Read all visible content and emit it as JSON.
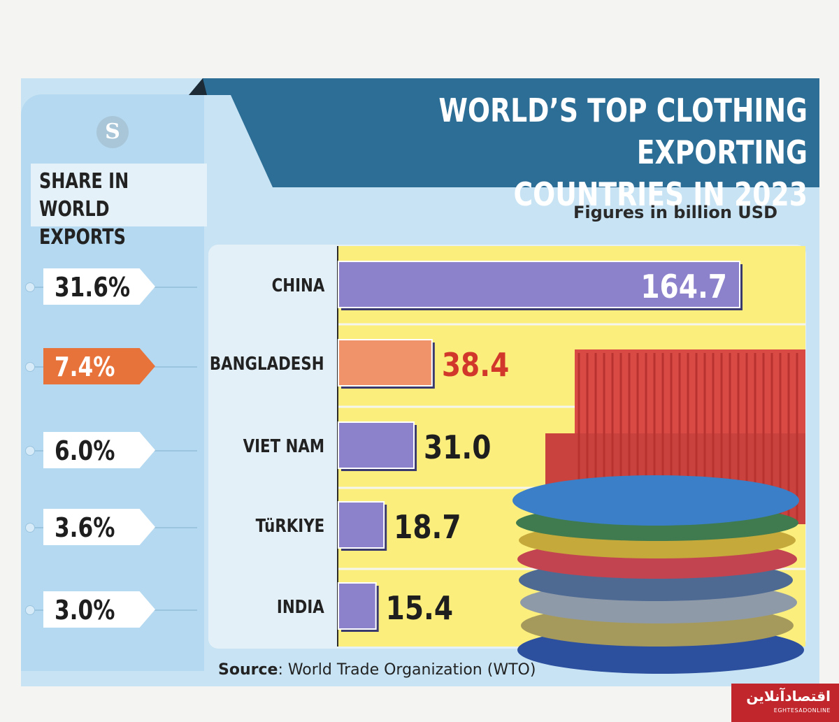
{
  "header": {
    "title_line1": "WORLD’S TOP CLOTHING EXPORTING",
    "title_line2": "COUNTRIES IN 2023",
    "units": "Figures in billion USD"
  },
  "logo": {
    "letter": "S"
  },
  "share": {
    "heading": "SHARE IN\nWORLD EXPORTS",
    "items": [
      {
        "label": "31.6%",
        "highlight": false
      },
      {
        "label": "7.4%",
        "highlight": true
      },
      {
        "label": "6.0%",
        "highlight": false
      },
      {
        "label": "3.6%",
        "highlight": false
      },
      {
        "label": "3.0%",
        "highlight": false
      }
    ]
  },
  "source": {
    "label": "Source",
    "text": ": World Trade Organization (WTO)"
  },
  "badge": {
    "text": "اقتصادآنلاین",
    "subtext": "EGHTESADONLINE"
  },
  "colors": {
    "title_band": "#2d6e96",
    "bar": "#8c82cc",
    "bar_highlight": "#f0926a",
    "value_highlight": "#d2372c",
    "plot_bg": "#fbee7c"
  },
  "chart_data": {
    "type": "bar",
    "orientation": "horizontal",
    "categories": [
      "CHINA",
      "BANGLADESH",
      "VIET NAM",
      "TüRKIYE",
      "INDIA"
    ],
    "values": [
      164.7,
      38.4,
      31.0,
      18.7,
      15.4
    ],
    "value_labels": [
      "164.7",
      "38.4",
      "31.0",
      "18.7",
      "15.4"
    ],
    "highlight_index": 1,
    "title": "WORLD’S TOP CLOTHING EXPORTING COUNTRIES IN 2023",
    "xlabel": "",
    "ylabel": "",
    "grid": true
  }
}
